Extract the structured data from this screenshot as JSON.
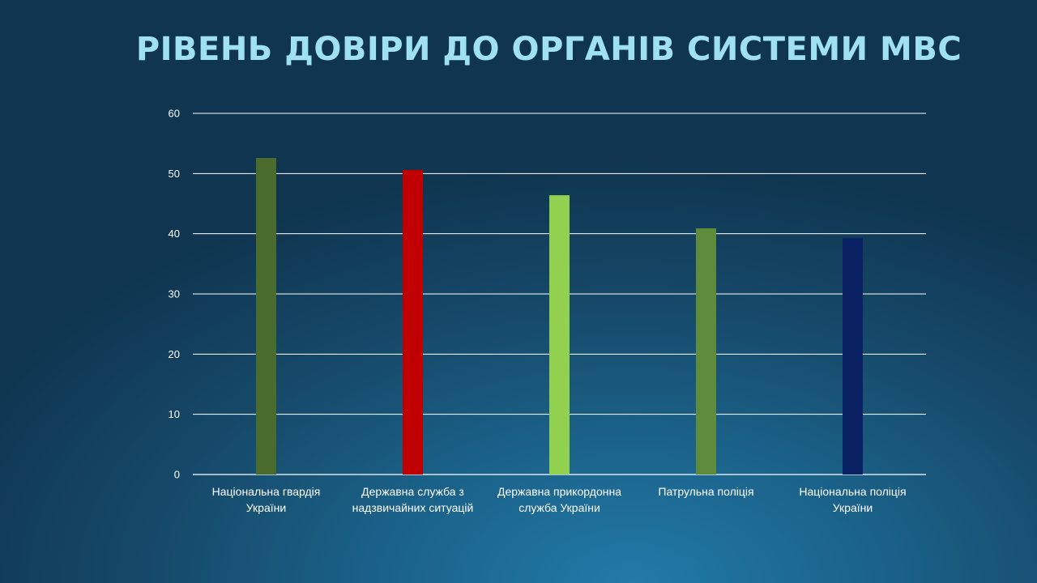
{
  "title": "РІВЕНЬ ДОВІРИ ДО ОРГАНІВ СИСТЕМИ МВС",
  "chart_data": {
    "type": "bar",
    "title": "",
    "xlabel": "",
    "ylabel": "",
    "ylim": [
      0,
      60
    ],
    "yticks": [
      0,
      10,
      20,
      30,
      40,
      50,
      60
    ],
    "grid": true,
    "legend": "none",
    "categories": [
      [
        "Національна гвардія",
        "України"
      ],
      [
        "Державна служба з",
        "надзвичайних ситуацій"
      ],
      [
        "Державна прикордонна",
        "служба України"
      ],
      [
        "Патрульна поліція"
      ],
      [
        "Національна поліція",
        "України"
      ]
    ],
    "values": [
      52.6,
      50.6,
      46.4,
      40.9,
      39.3
    ],
    "colors": [
      "#4a6b2e",
      "#c00000",
      "#92d050",
      "#5e8c3a",
      "#0a2164"
    ]
  }
}
